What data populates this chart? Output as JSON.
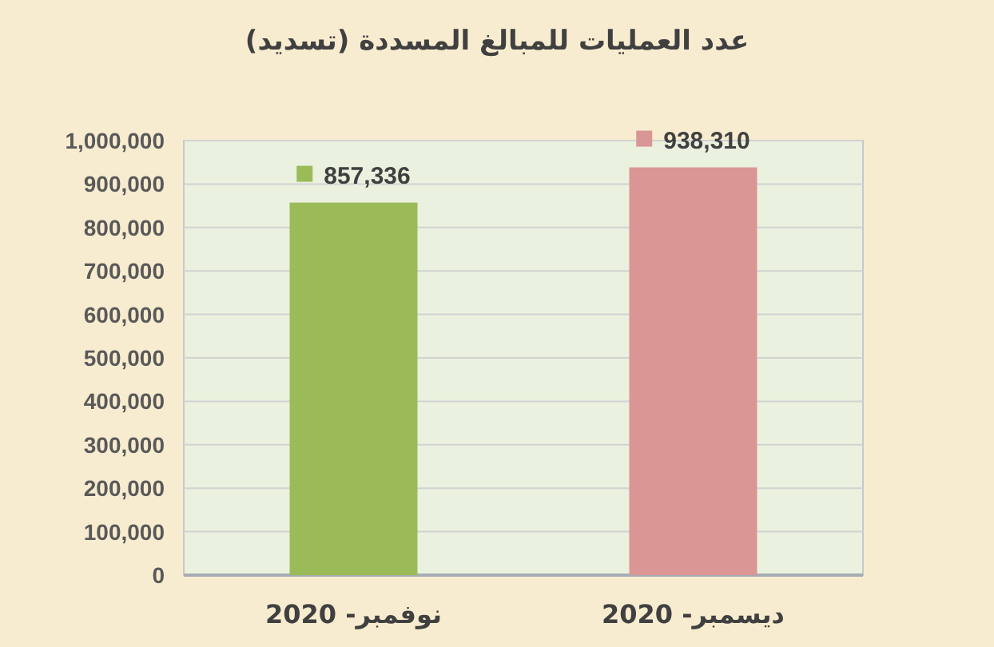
{
  "chart_data": {
    "type": "bar",
    "title": "عدد العمليات للمبالغ المسددة (تسديد)",
    "categories": [
      "نوفمبر- 2020",
      "ديسمبر- 2020"
    ],
    "values": [
      857336,
      938310
    ],
    "colors": [
      "#9bbb59",
      "#d99694"
    ],
    "value_labels": [
      "857,336",
      "938,310"
    ],
    "ylim": [
      0,
      1000000
    ],
    "yticks": [
      0,
      {
        "value": 100000,
        "label": "100,000"
      },
      {
        "value": 200000,
        "label": "200,000"
      },
      {
        "value": 300000,
        "label": "300,000"
      },
      {
        "value": 400000,
        "label": "400,000"
      },
      {
        "value": 500000,
        "label": "500,000"
      },
      {
        "value": 600000,
        "label": "600,000"
      },
      {
        "value": 700000,
        "label": "700,000"
      },
      {
        "value": 800000,
        "label": "800,000"
      },
      {
        "value": 900000,
        "label": "900,000"
      },
      {
        "value": 1000000,
        "label": "1,000,000"
      }
    ],
    "grid": "y"
  }
}
